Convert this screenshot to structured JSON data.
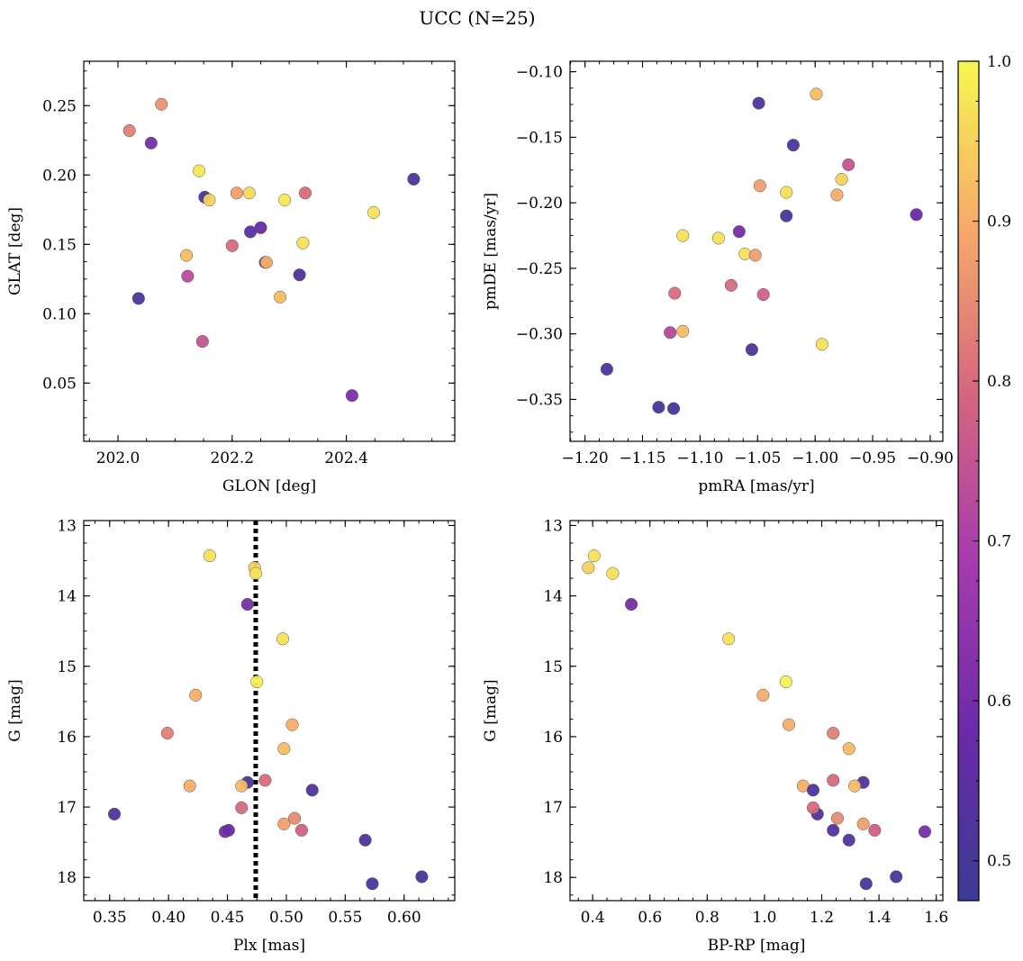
{
  "figure": {
    "title": "UCC (N=25)"
  },
  "colorbar": {
    "min": 0.475,
    "max": 1.0,
    "ticks": [
      0.5,
      0.6,
      0.7,
      0.8,
      0.9,
      1.0
    ],
    "tick_labels": [
      "0.5",
      "0.6",
      "0.7",
      "0.8",
      "0.9",
      "1.0"
    ],
    "colormap": "plasma"
  },
  "chart_data": [
    {
      "type": "scatter",
      "xlabel": "GLON [deg]",
      "ylabel": "GLAT [deg]",
      "xlim": [
        201.94,
        202.59
      ],
      "ylim": [
        0.008,
        0.282
      ],
      "y_inverted": false,
      "xticks": [
        202.0,
        202.2,
        202.4
      ],
      "xtick_labels": [
        "202.0",
        "202.2",
        "202.4"
      ],
      "yticks": [
        0.05,
        0.1,
        0.15,
        0.2,
        0.25
      ],
      "ytick_labels": [
        "0.05",
        "0.10",
        "0.15",
        "0.20",
        "0.25"
      ],
      "points": [
        {
          "x": 202.02,
          "y": 0.232,
          "c": 0.83
        },
        {
          "x": 202.076,
          "y": 0.251,
          "c": 0.86
        },
        {
          "x": 202.058,
          "y": 0.223,
          "c": 0.6
        },
        {
          "x": 202.142,
          "y": 0.203,
          "c": 0.98
        },
        {
          "x": 202.152,
          "y": 0.184,
          "c": 0.5
        },
        {
          "x": 202.16,
          "y": 0.182,
          "c": 0.95
        },
        {
          "x": 202.208,
          "y": 0.187,
          "c": 0.88
        },
        {
          "x": 202.23,
          "y": 0.187,
          "c": 0.96
        },
        {
          "x": 202.292,
          "y": 0.182,
          "c": 0.98
        },
        {
          "x": 202.328,
          "y": 0.187,
          "c": 0.8
        },
        {
          "x": 202.518,
          "y": 0.197,
          "c": 0.52
        },
        {
          "x": 202.448,
          "y": 0.173,
          "c": 0.97
        },
        {
          "x": 202.25,
          "y": 0.162,
          "c": 0.57
        },
        {
          "x": 202.232,
          "y": 0.159,
          "c": 0.54
        },
        {
          "x": 202.2,
          "y": 0.149,
          "c": 0.8
        },
        {
          "x": 202.324,
          "y": 0.151,
          "c": 0.97
        },
        {
          "x": 202.12,
          "y": 0.142,
          "c": 0.92
        },
        {
          "x": 202.258,
          "y": 0.137,
          "c": 0.52
        },
        {
          "x": 202.26,
          "y": 0.137,
          "c": 0.9
        },
        {
          "x": 202.318,
          "y": 0.128,
          "c": 0.52
        },
        {
          "x": 202.122,
          "y": 0.127,
          "c": 0.73
        },
        {
          "x": 202.284,
          "y": 0.112,
          "c": 0.92
        },
        {
          "x": 202.036,
          "y": 0.111,
          "c": 0.52
        },
        {
          "x": 202.148,
          "y": 0.08,
          "c": 0.75
        },
        {
          "x": 202.41,
          "y": 0.041,
          "c": 0.61
        }
      ]
    },
    {
      "type": "scatter",
      "xlabel": "pmRA [mas/yr]",
      "ylabel": "pmDE [mas/yr]",
      "xlim": [
        -1.213,
        -0.889
      ],
      "ylim": [
        -0.382,
        -0.092
      ],
      "y_inverted": false,
      "xticks": [
        -1.2,
        -1.15,
        -1.1,
        -1.05,
        -1.0,
        -0.95,
        -0.9
      ],
      "xtick_labels": [
        "−1.20",
        "−1.15",
        "−1.10",
        "−1.05",
        "−1.00",
        "−0.95",
        "−0.90"
      ],
      "yticks": [
        -0.1,
        -0.15,
        -0.2,
        -0.25,
        -0.3,
        -0.35
      ],
      "ytick_labels": [
        "−0.10",
        "−0.15",
        "−0.20",
        "−0.25",
        "−0.30",
        "−0.35"
      ],
      "points": [
        {
          "x": -1.049,
          "y": -0.124,
          "c": 0.52
        },
        {
          "x": -0.999,
          "y": -0.117,
          "c": 0.92
        },
        {
          "x": -1.019,
          "y": -0.156,
          "c": 0.52
        },
        {
          "x": -0.971,
          "y": -0.171,
          "c": 0.75
        },
        {
          "x": -0.977,
          "y": -0.182,
          "c": 0.95
        },
        {
          "x": -1.048,
          "y": -0.187,
          "c": 0.88
        },
        {
          "x": -1.025,
          "y": -0.192,
          "c": 0.97
        },
        {
          "x": -0.981,
          "y": -0.194,
          "c": 0.9
        },
        {
          "x": -1.025,
          "y": -0.21,
          "c": 0.5
        },
        {
          "x": -0.912,
          "y": -0.209,
          "c": 0.58
        },
        {
          "x": -1.066,
          "y": -0.222,
          "c": 0.6
        },
        {
          "x": -1.115,
          "y": -0.225,
          "c": 0.97
        },
        {
          "x": -1.084,
          "y": -0.227,
          "c": 0.97
        },
        {
          "x": -1.061,
          "y": -0.239,
          "c": 0.97
        },
        {
          "x": -1.052,
          "y": -0.24,
          "c": 0.88
        },
        {
          "x": -1.122,
          "y": -0.269,
          "c": 0.8
        },
        {
          "x": -1.073,
          "y": -0.263,
          "c": 0.8
        },
        {
          "x": -1.045,
          "y": -0.27,
          "c": 0.78
        },
        {
          "x": -1.126,
          "y": -0.299,
          "c": 0.72
        },
        {
          "x": -1.115,
          "y": -0.298,
          "c": 0.92
        },
        {
          "x": -0.994,
          "y": -0.308,
          "c": 0.97
        },
        {
          "x": -1.055,
          "y": -0.312,
          "c": 0.52
        },
        {
          "x": -1.181,
          "y": -0.327,
          "c": 0.52
        },
        {
          "x": -1.136,
          "y": -0.356,
          "c": 0.5
        },
        {
          "x": -1.123,
          "y": -0.357,
          "c": 0.5
        }
      ]
    },
    {
      "type": "scatter",
      "xlabel": "Plx [mas]",
      "ylabel": "G [mag]",
      "xlim": [
        0.328,
        0.643
      ],
      "ylim": [
        12.93,
        18.33
      ],
      "y_inverted": true,
      "xticks": [
        0.35,
        0.4,
        0.45,
        0.5,
        0.55,
        0.6
      ],
      "xtick_labels": [
        "0.35",
        "0.40",
        "0.45",
        "0.50",
        "0.55",
        "0.60"
      ],
      "yticks": [
        13,
        14,
        15,
        16,
        17,
        18
      ],
      "ytick_labels": [
        "13",
        "14",
        "15",
        "16",
        "17",
        "18"
      ],
      "vline": 0.474,
      "points": [
        {
          "x": 0.435,
          "y": 13.43,
          "c": 0.97
        },
        {
          "x": 0.473,
          "y": 13.6,
          "c": 0.95
        },
        {
          "x": 0.474,
          "y": 13.68,
          "c": 0.97
        },
        {
          "x": 0.467,
          "y": 14.12,
          "c": 0.6
        },
        {
          "x": 0.497,
          "y": 14.61,
          "c": 0.97
        },
        {
          "x": 0.475,
          "y": 15.22,
          "c": 0.99
        },
        {
          "x": 0.423,
          "y": 15.41,
          "c": 0.9
        },
        {
          "x": 0.505,
          "y": 15.83,
          "c": 0.9
        },
        {
          "x": 0.399,
          "y": 15.95,
          "c": 0.83
        },
        {
          "x": 0.498,
          "y": 16.17,
          "c": 0.92
        },
        {
          "x": 0.418,
          "y": 16.7,
          "c": 0.9
        },
        {
          "x": 0.467,
          "y": 16.65,
          "c": 0.52
        },
        {
          "x": 0.462,
          "y": 16.7,
          "c": 0.92
        },
        {
          "x": 0.482,
          "y": 16.62,
          "c": 0.8
        },
        {
          "x": 0.522,
          "y": 16.76,
          "c": 0.52
        },
        {
          "x": 0.354,
          "y": 17.1,
          "c": 0.52
        },
        {
          "x": 0.462,
          "y": 17.01,
          "c": 0.8
        },
        {
          "x": 0.507,
          "y": 17.16,
          "c": 0.85
        },
        {
          "x": 0.498,
          "y": 17.24,
          "c": 0.88
        },
        {
          "x": 0.448,
          "y": 17.35,
          "c": 0.6
        },
        {
          "x": 0.451,
          "y": 17.33,
          "c": 0.58
        },
        {
          "x": 0.513,
          "y": 17.33,
          "c": 0.78
        },
        {
          "x": 0.567,
          "y": 17.47,
          "c": 0.52
        },
        {
          "x": 0.573,
          "y": 18.09,
          "c": 0.5
        },
        {
          "x": 0.615,
          "y": 17.99,
          "c": 0.5
        }
      ]
    },
    {
      "type": "scatter",
      "xlabel": "BP-RP [mag]",
      "ylabel": "G [mag]",
      "xlim": [
        0.321,
        1.623
      ],
      "ylim": [
        12.93,
        18.33
      ],
      "y_inverted": true,
      "xticks": [
        0.4,
        0.6,
        0.8,
        1.0,
        1.2,
        1.4,
        1.6
      ],
      "xtick_labels": [
        "0.4",
        "0.6",
        "0.8",
        "1.0",
        "1.2",
        "1.4",
        "1.6"
      ],
      "yticks": [
        13,
        14,
        15,
        16,
        17,
        18
      ],
      "ytick_labels": [
        "13",
        "14",
        "15",
        "16",
        "17",
        "18"
      ],
      "points": [
        {
          "x": 0.405,
          "y": 13.43,
          "c": 0.97
        },
        {
          "x": 0.385,
          "y": 13.6,
          "c": 0.95
        },
        {
          "x": 0.47,
          "y": 13.68,
          "c": 0.97
        },
        {
          "x": 0.535,
          "y": 14.12,
          "c": 0.6
        },
        {
          "x": 0.875,
          "y": 14.61,
          "c": 0.97
        },
        {
          "x": 1.075,
          "y": 15.22,
          "c": 0.99
        },
        {
          "x": 0.995,
          "y": 15.41,
          "c": 0.9
        },
        {
          "x": 1.085,
          "y": 15.83,
          "c": 0.9
        },
        {
          "x": 1.24,
          "y": 15.95,
          "c": 0.83
        },
        {
          "x": 1.295,
          "y": 16.17,
          "c": 0.92
        },
        {
          "x": 1.135,
          "y": 16.7,
          "c": 0.9
        },
        {
          "x": 1.345,
          "y": 16.65,
          "c": 0.52
        },
        {
          "x": 1.315,
          "y": 16.7,
          "c": 0.92
        },
        {
          "x": 1.24,
          "y": 16.62,
          "c": 0.8
        },
        {
          "x": 1.17,
          "y": 16.76,
          "c": 0.52
        },
        {
          "x": 1.185,
          "y": 17.1,
          "c": 0.52
        },
        {
          "x": 1.17,
          "y": 17.01,
          "c": 0.8
        },
        {
          "x": 1.255,
          "y": 17.16,
          "c": 0.85
        },
        {
          "x": 1.345,
          "y": 17.24,
          "c": 0.88
        },
        {
          "x": 1.24,
          "y": 17.33,
          "c": 0.52
        },
        {
          "x": 1.56,
          "y": 17.35,
          "c": 0.6
        },
        {
          "x": 1.385,
          "y": 17.33,
          "c": 0.78
        },
        {
          "x": 1.295,
          "y": 17.47,
          "c": 0.52
        },
        {
          "x": 1.355,
          "y": 18.09,
          "c": 0.5
        },
        {
          "x": 1.46,
          "y": 17.99,
          "c": 0.5
        }
      ]
    }
  ]
}
